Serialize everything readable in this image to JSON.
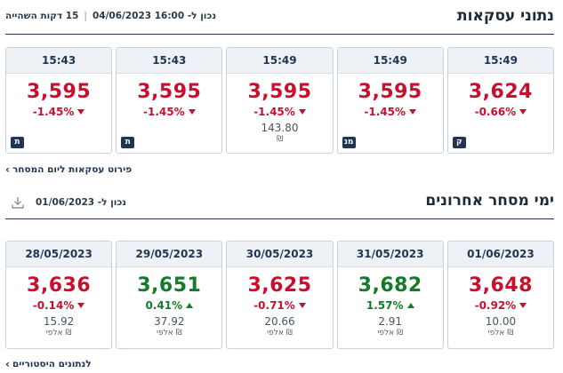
{
  "trades": {
    "title": "נתוני עסקאות",
    "updated_label": "נכון ל- 16:00 04/06/2023",
    "delay_label": "15 דקות השהייה",
    "cards": [
      {
        "time": "15:49",
        "price": "3,624",
        "change": "-0.66%",
        "direction": "down",
        "volume": "",
        "unit": "",
        "badge": "ק"
      },
      {
        "time": "15:49",
        "price": "3,595",
        "change": "-1.45%",
        "direction": "down",
        "volume": "",
        "unit": "",
        "badge": "מנ"
      },
      {
        "time": "15:49",
        "price": "3,595",
        "change": "-1.45%",
        "direction": "down",
        "volume": "143.80",
        "unit": "₪",
        "badge": ""
      },
      {
        "time": "15:43",
        "price": "3,595",
        "change": "-1.45%",
        "direction": "down",
        "volume": "",
        "unit": "",
        "badge": "ת"
      },
      {
        "time": "15:43",
        "price": "3,595",
        "change": "-1.45%",
        "direction": "down",
        "volume": "",
        "unit": "",
        "badge": "ת"
      }
    ],
    "link_label": "פירוט עסקאות ליום המסחר"
  },
  "recent": {
    "title": "ימי מסחר אחרונים",
    "updated_label": "נכון ל- 01/06/2023",
    "cards": [
      {
        "date": "01/06/2023",
        "price": "3,648",
        "change": "-0.92%",
        "direction": "down",
        "volume": "10.00",
        "unit": "אלפי ₪"
      },
      {
        "date": "31/05/2023",
        "price": "3,682",
        "change": "1.57%",
        "direction": "up",
        "volume": "2.91",
        "unit": "אלפי ₪"
      },
      {
        "date": "30/05/2023",
        "price": "3,625",
        "change": "-0.71%",
        "direction": "down",
        "volume": "20.66",
        "unit": "אלפי ₪"
      },
      {
        "date": "29/05/2023",
        "price": "3,651",
        "change": "0.41%",
        "direction": "up",
        "volume": "37.92",
        "unit": "אלפי ₪"
      },
      {
        "date": "28/05/2023",
        "price": "3,636",
        "change": "-0.14%",
        "direction": "down",
        "volume": "15.92",
        "unit": "אלפי ₪"
      }
    ],
    "link_label": "לנתונים היסטוריים"
  },
  "colors": {
    "negative": "#c8102e",
    "positive": "#157a2a",
    "navy": "#1f3552"
  },
  "icons": {
    "download": "download-icon",
    "chevron": "chevron-left-icon"
  }
}
